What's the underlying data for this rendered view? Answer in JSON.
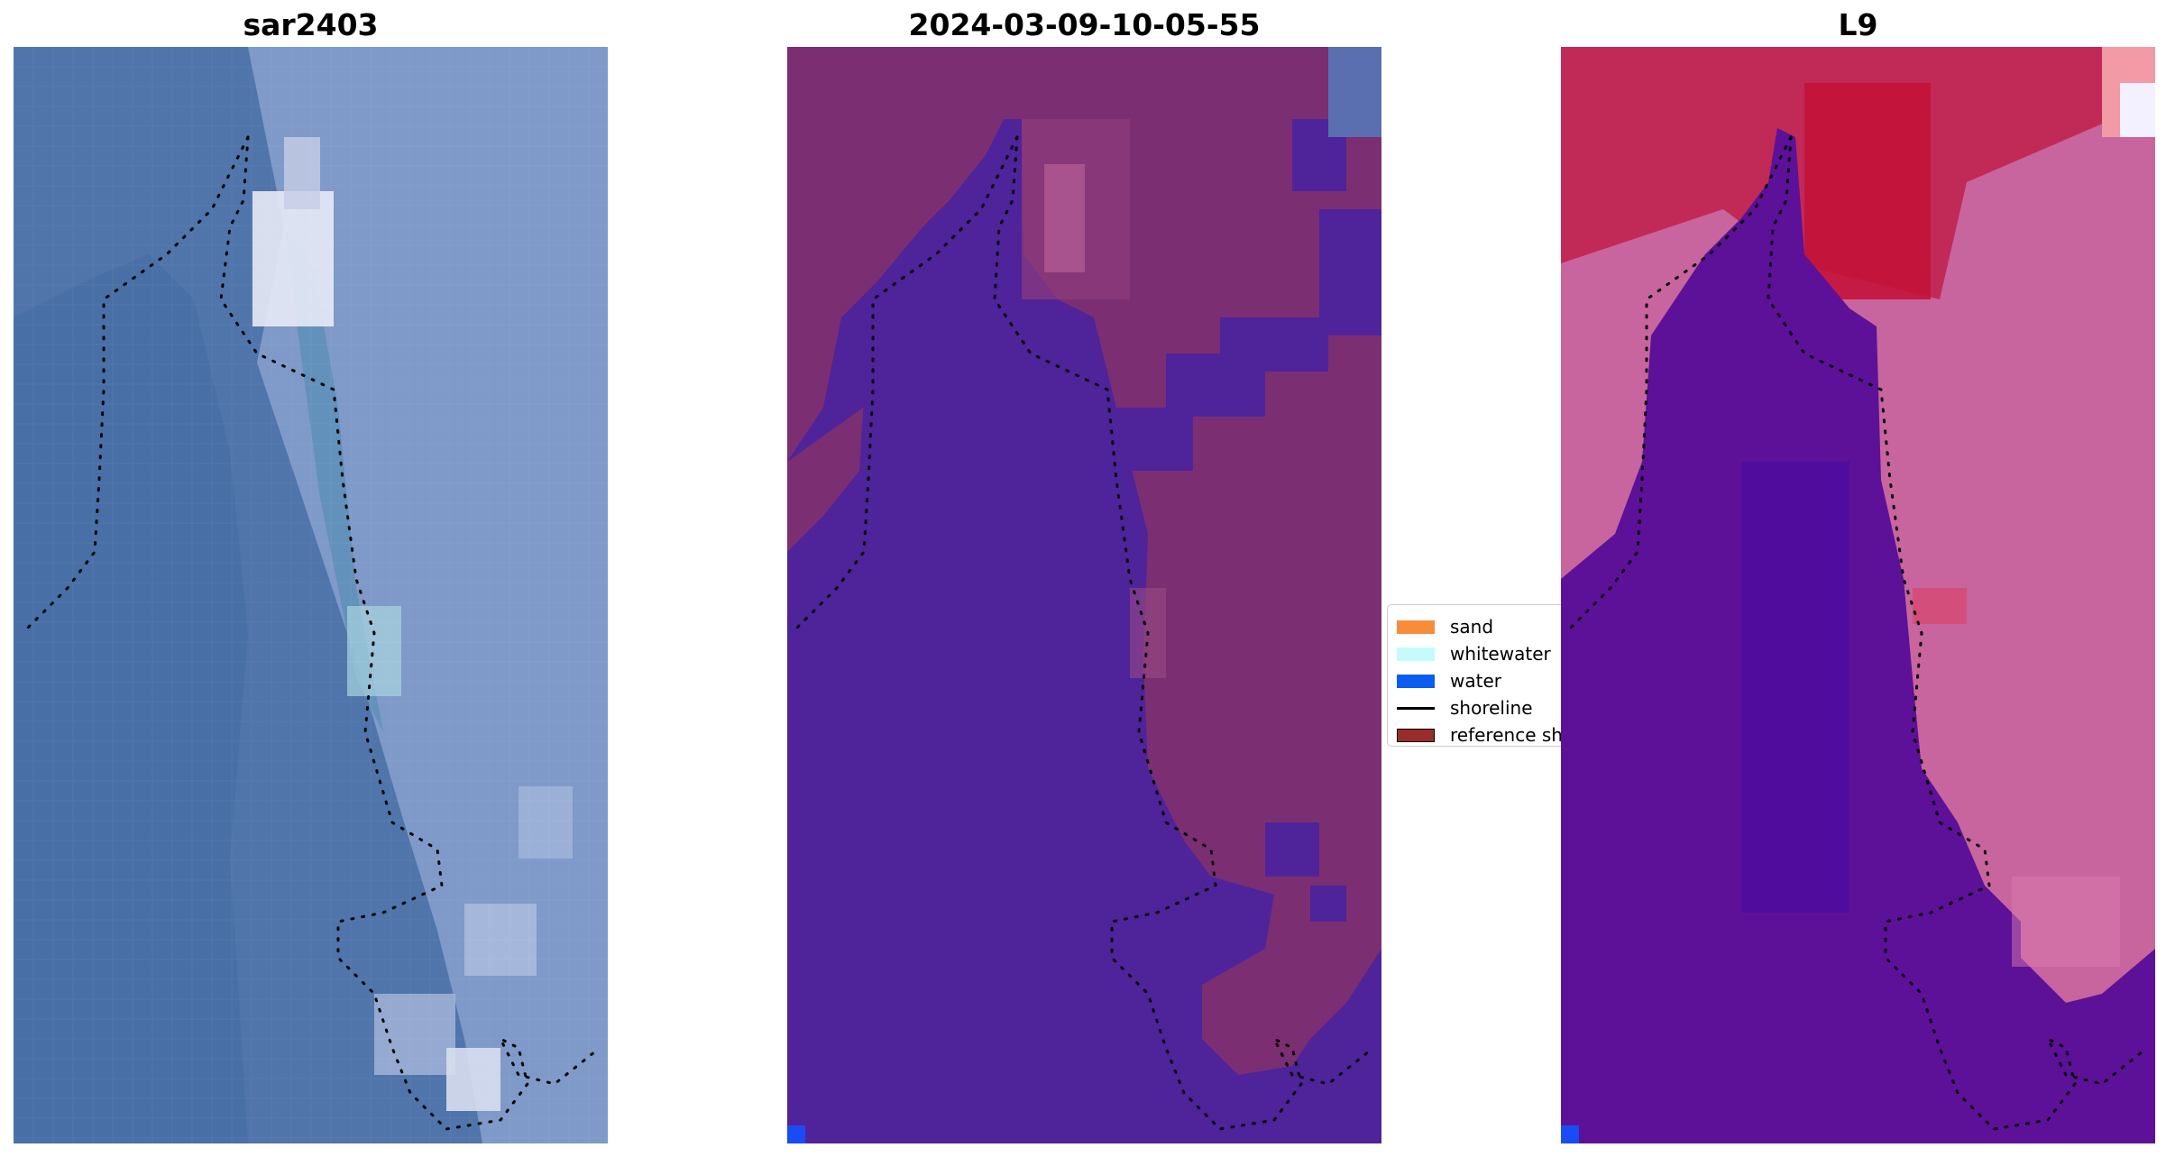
{
  "panels": [
    {
      "id": "left",
      "title": "sar2403"
    },
    {
      "id": "mid",
      "title": "2024-03-09-10-05-55"
    },
    {
      "id": "right",
      "title": "L9"
    }
  ],
  "legend": {
    "items": [
      {
        "label": "sand",
        "kind": "patch",
        "color": "#f78d3a"
      },
      {
        "label": "whitewater",
        "kind": "patch",
        "color": "#c6fbfb"
      },
      {
        "label": "water",
        "kind": "patch",
        "color": "#0b5cf0"
      },
      {
        "label": "shoreline",
        "kind": "line",
        "color": "#000000"
      },
      {
        "label": "reference shoreline",
        "kind": "patch",
        "color": "#9a2c2c"
      }
    ]
  },
  "colors": {
    "water_rgb": "#4a72a8",
    "land_rgb": "#7f99c8",
    "water_class": "#4f239a",
    "land_class": "#7b2f72",
    "land_pink": "#c8659e",
    "land_red": "#c0204a",
    "water_purple": "#5c1198",
    "corner_pixel": "#1a4cf5"
  }
}
